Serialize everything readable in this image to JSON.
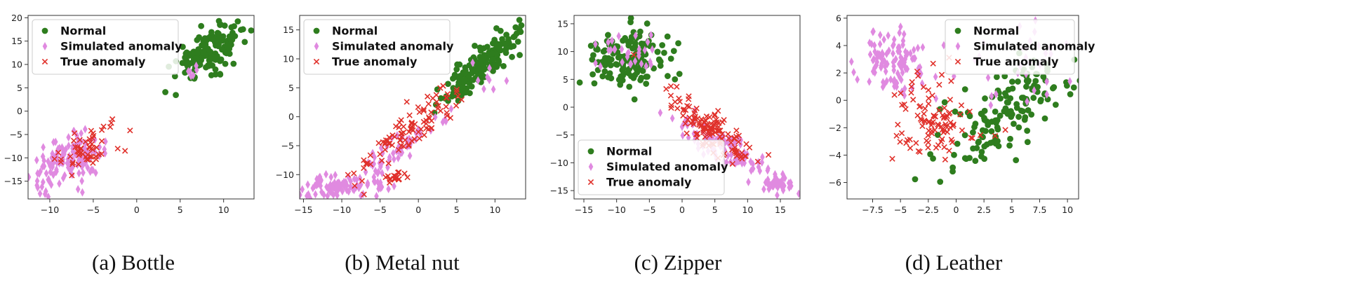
{
  "colors": {
    "normal": "#2e7d1e",
    "simulated": "#e08ae0",
    "true": "#e0302a"
  },
  "chart_data": [
    {
      "type": "scatter",
      "caption": "(a) Bottle",
      "xlim": [
        -12.5,
        13.5
      ],
      "ylim": [
        -18.8,
        20.5
      ],
      "xticks": [
        -10,
        -5,
        0,
        5,
        10
      ],
      "yticks": [
        -15,
        -10,
        -5,
        0,
        5,
        10,
        15,
        20
      ],
      "legend_position": "upper-left",
      "series": [
        {
          "name": "Normal",
          "marker": "circle",
          "clusters": [
            {
              "cx": 8.5,
              "cy": 13,
              "sx": 2.0,
              "sy": 2.8,
              "n": 150,
              "corr": 0.6
            }
          ]
        },
        {
          "name": "Simulated anomaly",
          "marker": "diamond",
          "clusters": [
            {
              "cx": -8,
              "cy": -11,
              "sx": 2.0,
              "sy": 2.8,
              "n": 150,
              "corr": 0.5
            },
            {
              "cx": 6.8,
              "cy": 8.3,
              "sx": 1.0,
              "sy": 0.8,
              "n": 6,
              "corr": 0
            }
          ]
        },
        {
          "name": "True anomaly",
          "marker": "x",
          "clusters": [
            {
              "cx": -5.5,
              "cy": -7.5,
              "sx": 2.2,
              "sy": 2.4,
              "n": 55,
              "corr": 0.6
            }
          ]
        }
      ]
    },
    {
      "type": "scatter",
      "caption": "(b) Metal nut",
      "xlim": [
        -15.5,
        14
      ],
      "ylim": [
        -14.2,
        17.5
      ],
      "xticks": [
        -15,
        -10,
        -5,
        0,
        5,
        10
      ],
      "yticks": [
        -10,
        -5,
        0,
        5,
        10,
        15
      ],
      "legend_position": "upper-left",
      "series": [
        {
          "name": "Normal",
          "marker": "circle",
          "clusters": [
            {
              "cx": 8.5,
              "cy": 9,
              "sx": 2.6,
              "sy": 3.2,
              "n": 170,
              "corr": 0.85
            }
          ]
        },
        {
          "name": "Simulated anomaly",
          "marker": "diamond",
          "clusters": [
            {
              "cx": -10,
              "cy": -12,
              "sx": 2.8,
              "sy": 1.0,
              "n": 90,
              "corr": 0.2
            },
            {
              "cx": -3,
              "cy": -6,
              "sx": 3.0,
              "sy": 3.0,
              "n": 60,
              "corr": 0.9
            },
            {
              "cx": 9,
              "cy": 6,
              "sx": 1.5,
              "sy": 1.5,
              "n": 8,
              "corr": 0
            }
          ]
        },
        {
          "name": "True anomaly",
          "marker": "x",
          "clusters": [
            {
              "cx": -1.5,
              "cy": -3,
              "sx": 3.5,
              "sy": 4.0,
              "n": 100,
              "corr": 0.9
            },
            {
              "cx": -3,
              "cy": -10.5,
              "sx": 0.8,
              "sy": 0.6,
              "n": 18,
              "corr": 0
            }
          ]
        }
      ]
    },
    {
      "type": "scatter",
      "caption": "(c) Zipper",
      "xlim": [
        -16.5,
        18
      ],
      "ylim": [
        -16.5,
        16.5
      ],
      "xticks": [
        -15,
        -10,
        -5,
        0,
        5,
        10,
        15
      ],
      "yticks": [
        -15,
        -10,
        -5,
        0,
        5,
        10,
        15
      ],
      "legend_position": "lower-left",
      "series": [
        {
          "name": "Normal",
          "marker": "circle",
          "clusters": [
            {
              "cx": -8.5,
              "cy": 8.5,
              "sx": 2.8,
              "sy": 2.5,
              "n": 150,
              "corr": 0
            }
          ]
        },
        {
          "name": "Simulated anomaly",
          "marker": "diamond",
          "clusters": [
            {
              "cx": 6,
              "cy": -7,
              "sx": 4.0,
              "sy": 3.2,
              "n": 110,
              "corr": -0.85
            },
            {
              "cx": 14.5,
              "cy": -14,
              "sx": 1.2,
              "sy": 0.8,
              "n": 40,
              "corr": 0
            },
            {
              "cx": -8,
              "cy": 9,
              "sx": 2.5,
              "sy": 2.0,
              "n": 30,
              "corr": 0
            }
          ]
        },
        {
          "name": "True anomaly",
          "marker": "x",
          "clusters": [
            {
              "cx": 4,
              "cy": -3.5,
              "sx": 3.5,
              "sy": 3.5,
              "n": 130,
              "corr": -0.85
            }
          ]
        }
      ]
    },
    {
      "type": "scatter",
      "caption": "(d) Leather",
      "xlim": [
        -9.8,
        11
      ],
      "ylim": [
        -7.2,
        6.2
      ],
      "xticks": [
        -7.5,
        -5.0,
        -2.5,
        0.0,
        2.5,
        5.0,
        7.5,
        10.0
      ],
      "yticks": [
        -6,
        -4,
        -2,
        0,
        2,
        4,
        6
      ],
      "legend_position": "upper-right",
      "series": [
        {
          "name": "Normal",
          "marker": "circle",
          "clusters": [
            {
              "cx": 4.5,
              "cy": -1,
              "sx": 3.0,
              "sy": 2.3,
              "n": 150,
              "corr": 0.75
            }
          ]
        },
        {
          "name": "Simulated anomaly",
          "marker": "diamond",
          "clusters": [
            {
              "cx": -5.5,
              "cy": 3,
              "sx": 1.5,
              "sy": 1.2,
              "n": 110,
              "corr": 0
            },
            {
              "cx": 6,
              "cy": 3,
              "sx": 2.5,
              "sy": 1.5,
              "n": 30,
              "corr": 0
            }
          ]
        },
        {
          "name": "True anomaly",
          "marker": "x",
          "clusters": [
            {
              "cx": -2,
              "cy": -1.5,
              "sx": 1.8,
              "sy": 1.6,
              "n": 100,
              "corr": 0
            }
          ]
        }
      ]
    }
  ]
}
